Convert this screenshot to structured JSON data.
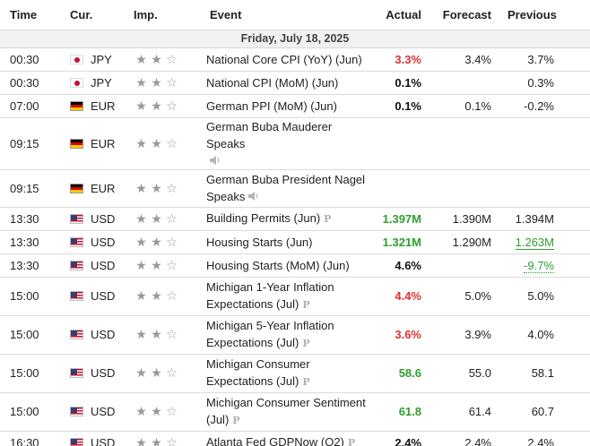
{
  "headers": {
    "time": "Time",
    "currency": "Cur.",
    "importance": "Imp.",
    "event": "Event",
    "actual": "Actual",
    "forecast": "Forecast",
    "previous": "Previous"
  },
  "date_row": "Friday, July 18, 2025",
  "colors": {
    "actual_better": "#2e9e2e",
    "actual_worse": "#e03030",
    "neutral": "#111111"
  },
  "rows": [
    {
      "time": "00:30",
      "flag_icon": "jp-flag-icon",
      "currency": "JPY",
      "stars": 2,
      "event_lines": [
        "National Core CPI (YoY) (Jun)"
      ],
      "preliminary": false,
      "speech": false,
      "actual": "3.3%",
      "actual_color": "red",
      "forecast": "3.4%",
      "previous": "3.7%",
      "previous_style": "normal"
    },
    {
      "time": "00:30",
      "flag_icon": "jp-flag-icon",
      "currency": "JPY",
      "stars": 2,
      "event_lines": [
        "National CPI (MoM) (Jun)"
      ],
      "preliminary": false,
      "speech": false,
      "actual": "0.1%",
      "actual_color": "black",
      "forecast": "",
      "previous": "0.3%",
      "previous_style": "normal"
    },
    {
      "time": "07:00",
      "flag_icon": "de-flag-icon",
      "currency": "EUR",
      "stars": 2,
      "event_lines": [
        "German PPI (MoM) (Jun)"
      ],
      "preliminary": false,
      "speech": false,
      "actual": "0.1%",
      "actual_color": "black",
      "forecast": "0.1%",
      "previous": "-0.2%",
      "previous_style": "normal"
    },
    {
      "time": "09:15",
      "flag_icon": "de-flag-icon",
      "currency": "EUR",
      "stars": 2,
      "event_lines": [
        "German Buba Mauderer Speaks",
        ""
      ],
      "preliminary": false,
      "speech": true,
      "actual": "",
      "actual_color": "black",
      "forecast": "",
      "previous": "",
      "previous_style": "normal"
    },
    {
      "time": "09:15",
      "flag_icon": "de-flag-icon",
      "currency": "EUR",
      "stars": 2,
      "event_lines": [
        "German Buba President Nagel",
        "Speaks"
      ],
      "preliminary": false,
      "speech": true,
      "actual": "",
      "actual_color": "black",
      "forecast": "",
      "previous": "",
      "previous_style": "normal"
    },
    {
      "time": "13:30",
      "flag_icon": "us-flag-icon",
      "currency": "USD",
      "stars": 2,
      "event_lines": [
        "Building Permits (Jun)"
      ],
      "preliminary": true,
      "speech": false,
      "actual": "1.397M",
      "actual_color": "green",
      "forecast": "1.390M",
      "previous": "1.394M",
      "previous_style": "normal"
    },
    {
      "time": "13:30",
      "flag_icon": "us-flag-icon",
      "currency": "USD",
      "stars": 2,
      "event_lines": [
        "Housing Starts (Jun)"
      ],
      "preliminary": false,
      "speech": false,
      "actual": "1.321M",
      "actual_color": "green",
      "forecast": "1.290M",
      "previous": "1.263M",
      "previous_style": "green-solid"
    },
    {
      "time": "13:30",
      "flag_icon": "us-flag-icon",
      "currency": "USD",
      "stars": 2,
      "event_lines": [
        "Housing Starts (MoM) (Jun)"
      ],
      "preliminary": false,
      "speech": false,
      "actual": "4.6%",
      "actual_color": "black",
      "forecast": "",
      "previous": "-9.7%",
      "previous_style": "green-dotted"
    },
    {
      "time": "15:00",
      "flag_icon": "us-flag-icon",
      "currency": "USD",
      "stars": 2,
      "event_lines": [
        "Michigan 1-Year Inflation",
        "Expectations (Jul)"
      ],
      "preliminary": true,
      "speech": false,
      "actual": "4.4%",
      "actual_color": "red",
      "forecast": "5.0%",
      "previous": "5.0%",
      "previous_style": "normal"
    },
    {
      "time": "15:00",
      "flag_icon": "us-flag-icon",
      "currency": "USD",
      "stars": 2,
      "event_lines": [
        "Michigan 5-Year Inflation",
        "Expectations (Jul)"
      ],
      "preliminary": true,
      "speech": false,
      "actual": "3.6%",
      "actual_color": "red",
      "forecast": "3.9%",
      "previous": "4.0%",
      "previous_style": "normal"
    },
    {
      "time": "15:00",
      "flag_icon": "us-flag-icon",
      "currency": "USD",
      "stars": 2,
      "event_lines": [
        "Michigan Consumer",
        "Expectations (Jul)"
      ],
      "preliminary": true,
      "speech": false,
      "actual": "58.6",
      "actual_color": "green",
      "forecast": "55.0",
      "previous": "58.1",
      "previous_style": "normal"
    },
    {
      "time": "15:00",
      "flag_icon": "us-flag-icon",
      "currency": "USD",
      "stars": 2,
      "event_lines": [
        "Michigan Consumer Sentiment",
        "(Jul)"
      ],
      "preliminary": true,
      "speech": false,
      "actual": "61.8",
      "actual_color": "green",
      "forecast": "61.4",
      "previous": "60.7",
      "previous_style": "normal"
    },
    {
      "time": "16:30",
      "flag_icon": "us-flag-icon",
      "currency": "USD",
      "stars": 2,
      "event_lines": [
        "Atlanta Fed GDPNow (Q2)"
      ],
      "preliminary": true,
      "speech": false,
      "actual": "2.4%",
      "actual_color": "black",
      "forecast": "2.4%",
      "previous": "2.4%",
      "previous_style": "normal"
    }
  ],
  "preliminary_marker": "P",
  "star_glyph_on": "★",
  "star_glyph_off": "☆"
}
